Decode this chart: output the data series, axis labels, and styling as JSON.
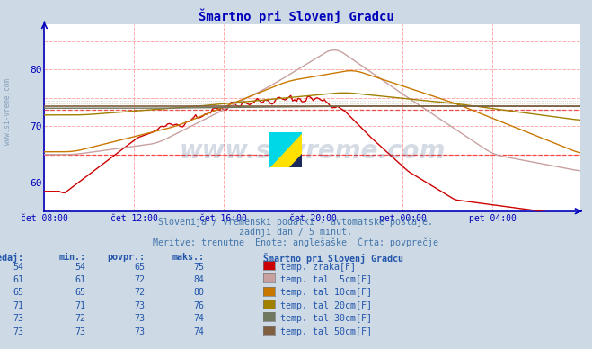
{
  "title": "Šmartno pri Slovenj Gradcu",
  "bg_color": "#cdd9e5",
  "plot_bg_color": "#ffffff",
  "grid_color": "#ffaaaa",
  "axis_color": "#0000bb",
  "title_color": "#0000bb",
  "ylim": [
    55,
    88
  ],
  "yticks": [
    60,
    70,
    80
  ],
  "xtick_labels": [
    "čet 08:00",
    "čet 12:00",
    "čet 16:00",
    "čet 20:00",
    "pet 00:00",
    "pet 04:00"
  ],
  "subtitle1": "Slovenija / vremenski podatki - avtomatske postaje.",
  "subtitle2": "zadnji dan / 5 minut.",
  "subtitle3": "Meritve: trenutne  Enote: anglešaške  Črta: povprečje",
  "subtitle_color": "#4477aa",
  "table_header_color": "#2255aa",
  "table_data_color": "#2255aa",
  "table_header": [
    "sedaj:",
    "min.:",
    "povpr.:",
    "maks.:",
    "Šmartno pri Slovenj Gradcu"
  ],
  "table_data": [
    [
      54,
      54,
      65,
      75,
      "temp. zraka[F]",
      "#cc0000"
    ],
    [
      61,
      61,
      72,
      84,
      "temp. tal  5cm[F]",
      "#c8a0a0"
    ],
    [
      65,
      65,
      72,
      80,
      "temp. tal 10cm[F]",
      "#c87800"
    ],
    [
      71,
      71,
      73,
      76,
      "temp. tal 20cm[F]",
      "#a08000"
    ],
    [
      73,
      72,
      73,
      74,
      "temp. tal 30cm[F]",
      "#707860"
    ],
    [
      73,
      73,
      73,
      74,
      "temp. tal 50cm[F]",
      "#806040"
    ]
  ],
  "line_colors": [
    "#cc0000",
    "#c8a0a0",
    "#c87800",
    "#a08000",
    "#707860",
    "#806040"
  ],
  "line_widths": [
    1.0,
    1.0,
    1.0,
    1.0,
    1.0,
    1.2
  ],
  "hline_y": 65.0,
  "hline2_y": 73.0,
  "hline_color": "#ff4444",
  "n_points": 288,
  "xtick_positions": [
    0,
    48,
    96,
    144,
    192,
    240
  ],
  "watermark_text": "www.si-vreme.com",
  "watermark_color": "#1a3a6a",
  "watermark_alpha": 0.18,
  "left_text": "www.si-vreme.com"
}
